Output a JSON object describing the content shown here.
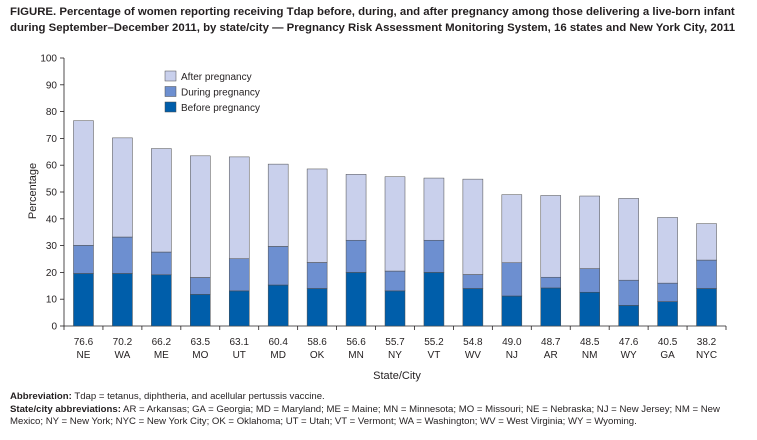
{
  "figure": {
    "label": "FIGURE.",
    "title": "Percentage of women reporting receiving Tdap before, during, and after pregnancy among those delivering a live-born infant during September–December 2011, by state/city — Pregnancy Risk Assessment Monitoring System, 16 states and New York City, 2011"
  },
  "footnote": {
    "abbreviation_label": "Abbreviation:",
    "abbreviation_text": "Tdap = tetanus, diphtheria, and acellular pertussis vaccine.",
    "state_label": "State/city abbreviations:",
    "state_text": "AR = Arkansas; GA = Georgia; MD = Maryland; ME = Maine; MN = Minnesota; MO = Missouri; NE = Nebraska; NJ = New Jersey; NM = New Mexico; NY = New York; NYC = New York City; OK = Oklahoma; UT = Utah; VT = Vermont; WA = Washington; WV = West Virginia; WY = Wyoming."
  },
  "chart_data": {
    "type": "bar",
    "stacked": true,
    "xlabel": "State/City",
    "ylabel": "Percentage",
    "ylim": [
      0,
      100
    ],
    "yticks": [
      0,
      10,
      20,
      30,
      40,
      50,
      60,
      70,
      80,
      90,
      100
    ],
    "grid": false,
    "legend_position": "top-left",
    "categories": [
      "NE",
      "WA",
      "ME",
      "MO",
      "UT",
      "MD",
      "OK",
      "MN",
      "NY",
      "VT",
      "WV",
      "NJ",
      "AR",
      "NM",
      "WY",
      "GA",
      "NYC"
    ],
    "totals": [
      "76.6",
      "70.2",
      "66.2",
      "63.5",
      "63.1",
      "60.4",
      "58.6",
      "56.6",
      "55.7",
      "55.2",
      "54.8",
      "49.0",
      "48.7",
      "48.5",
      "47.6",
      "40.5",
      "38.2"
    ],
    "series": [
      {
        "name": "Before pregnancy",
        "color": "#005eaa",
        "values": [
          19.6,
          19.6,
          19.1,
          11.8,
          13.1,
          15.3,
          14.0,
          20.0,
          13.1,
          20.0,
          14.0,
          11.2,
          14.2,
          12.6,
          7.7,
          9.1,
          14.0
        ]
      },
      {
        "name": "During pregnancy",
        "color": "#6d8fd0",
        "values": [
          10.5,
          13.6,
          8.5,
          6.3,
          12.0,
          14.4,
          9.7,
          12.0,
          7.4,
          12.0,
          5.2,
          12.4,
          4.0,
          8.8,
          9.4,
          6.9,
          10.6
        ]
      },
      {
        "name": "After pregnancy",
        "color": "#c9d0ec",
        "values": [
          46.5,
          37.0,
          38.6,
          45.4,
          38.0,
          30.7,
          34.9,
          24.6,
          35.2,
          23.2,
          35.6,
          25.4,
          30.5,
          27.1,
          30.5,
          24.5,
          13.6
        ]
      }
    ]
  }
}
